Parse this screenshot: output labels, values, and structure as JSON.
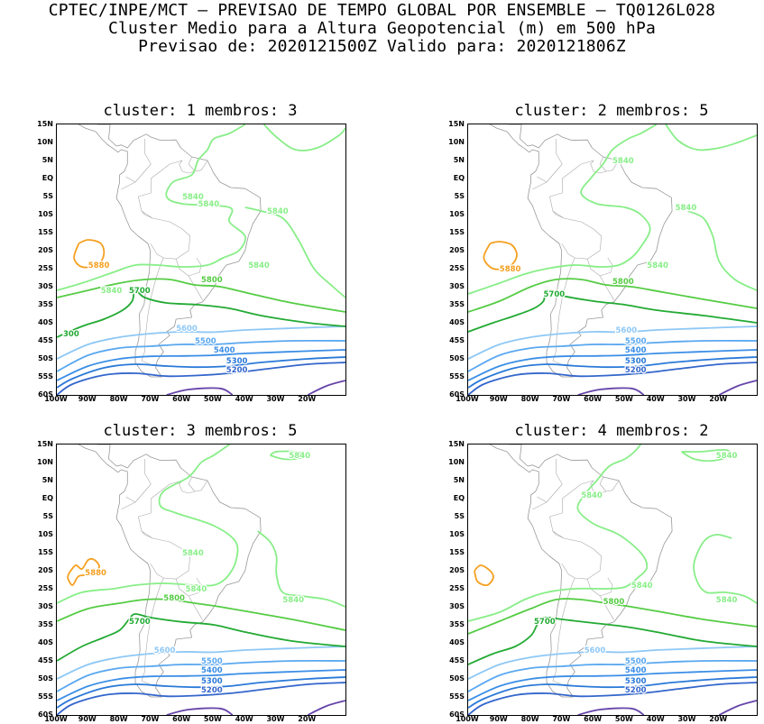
{
  "header": {
    "line1": "CPTEC/INPE/MCT — PREVISAO DE TEMPO GLOBAL POR ENSEMBLE — TQ0126L028",
    "line2": "Cluster Medio para a Altura Geopotencial (m) em 500 hPa",
    "line3": "Previsao de: 2020121500Z   Valido para: 2020121806Z"
  },
  "axes": {
    "lat_labels": [
      "15N",
      "10N",
      "5N",
      "EQ",
      "5S",
      "10S",
      "15S",
      "20S",
      "25S",
      "30S",
      "35S",
      "40S",
      "45S",
      "50S",
      "55S",
      "60S"
    ],
    "lon_labels": [
      "100W",
      "90W",
      "80W",
      "70W",
      "60W",
      "50W",
      "40W",
      "30W",
      "20W"
    ]
  },
  "colors": {
    "c5200": "#3366cc",
    "c5300": "#2a79d8",
    "c5400": "#3a8ee6",
    "c5500": "#5aa8f0",
    "c5600": "#8ec8f5",
    "c5700": "#22aa33",
    "c5800": "#55cc44",
    "c5840": "#88ee88",
    "c5880": "#f5a020",
    "c5100": "#6644aa",
    "coast": "#999999"
  },
  "panels": [
    {
      "title": "cluster:  1   membros:  3",
      "labels": {
        "l5880": "5880",
        "l5840a": "5840",
        "l5840b": "5840",
        "l5840c": "5840",
        "l5840d": "5840",
        "l5840e": "5840",
        "l5800": "5800",
        "l5700": "5700",
        "l5600": "5600",
        "l5500": "5500",
        "l5400": "5400",
        "l5300": "5300",
        "l5200": "5200",
        "l5x": "300"
      }
    },
    {
      "title": "cluster:  2   membros:  5",
      "labels": {
        "l5880": "5880",
        "l5840a": "5840",
        "l5840b": "5840",
        "l5840c": "5840",
        "l5800": "5800",
        "l5700": "5700",
        "l5600": "5600",
        "l5500": "5500",
        "l5400": "5400",
        "l5300": "5300",
        "l5200": "5200"
      }
    },
    {
      "title": "cluster:  3   membros:  5",
      "labels": {
        "l5880": "5880",
        "l5840a": "5840",
        "l5840b": "5840",
        "l5840c": "5840",
        "l5840d": "5840",
        "l5800": "5800",
        "l5700": "5700",
        "l5600": "5600",
        "l5500": "5500",
        "l5400": "5400",
        "l5300": "5300",
        "l5200": "5200"
      }
    },
    {
      "title": "cluster:  4   membros:  2",
      "labels": {
        "l5840a": "5840",
        "l5840b": "5840",
        "l5840c": "5840",
        "l5840d": "5840",
        "l5800": "5800",
        "l5700": "5700",
        "l5600": "5600",
        "l5500": "5500",
        "l5400": "5400",
        "l5300": "5300",
        "l5200": "5200"
      }
    }
  ]
}
